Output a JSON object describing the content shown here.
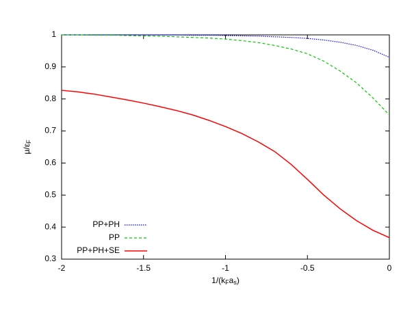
{
  "chart_data": {
    "type": "line",
    "x_label": [
      {
        "text": "1/(k"
      },
      {
        "text": "F",
        "sub": true
      },
      {
        "text": "a"
      },
      {
        "text": "s",
        "sub": true
      },
      {
        "text": ")"
      }
    ],
    "y_label": [
      {
        "text": "μ/ε"
      },
      {
        "text": "F",
        "sub": true
      }
    ],
    "x": [
      -2,
      -1.9,
      -1.8,
      -1.7,
      -1.6,
      -1.5,
      -1.4,
      -1.3,
      -1.2,
      -1.1,
      -1,
      -0.9,
      -0.8,
      -0.7,
      -0.6,
      -0.5,
      -0.4,
      -0.3,
      -0.2,
      -0.1,
      0
    ],
    "series": [
      {
        "name": "PP+PH",
        "color": "#0000ff",
        "style": "dotted",
        "values": [
          1,
          1,
          1,
          1,
          1,
          1,
          1,
          1,
          0.999,
          0.999,
          0.998,
          0.997,
          0.996,
          0.994,
          0.992,
          0.989,
          0.984,
          0.977,
          0.967,
          0.952,
          0.93
        ]
      },
      {
        "name": "PP",
        "color": "#00cc00",
        "style": "dashed",
        "values": [
          1,
          1,
          0.999,
          0.999,
          0.998,
          0.997,
          0.996,
          0.994,
          0.992,
          0.99,
          0.987,
          0.982,
          0.976,
          0.967,
          0.956,
          0.941,
          0.918,
          0.887,
          0.85,
          0.803,
          0.75
        ]
      },
      {
        "name": "PP+PH+SE",
        "color": "#ff0000",
        "style": "solid",
        "values": [
          0.827,
          0.822,
          0.815,
          0.806,
          0.797,
          0.787,
          0.776,
          0.764,
          0.75,
          0.733,
          0.714,
          0.692,
          0.666,
          0.636,
          0.596,
          0.549,
          0.5,
          0.457,
          0.42,
          0.39,
          0.367
        ]
      }
    ],
    "xlim": [
      -2,
      0
    ],
    "xticks": [
      -2,
      -1.5,
      -1,
      -0.5,
      0
    ],
    "ylim": [
      0.3,
      1
    ],
    "yticks": [
      0.3,
      0.4,
      0.5,
      0.6,
      0.7,
      0.8,
      0.9,
      1
    ],
    "legend": "bottom-left"
  }
}
